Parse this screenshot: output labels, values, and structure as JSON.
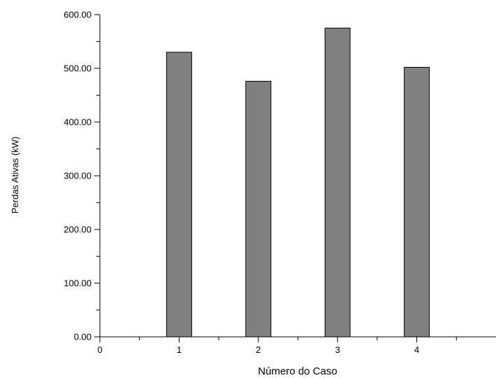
{
  "chart_data": {
    "type": "bar",
    "title": "",
    "xlabel": "Número do Caso",
    "ylabel": "Perdas Ativas (kW)",
    "categories": [
      1,
      2,
      3,
      4
    ],
    "values": [
      530,
      476,
      575,
      502
    ],
    "xlim": [
      0,
      5
    ],
    "ylim": [
      0,
      600
    ],
    "x_tick_labels": [
      "0",
      "1",
      "2",
      "3",
      "4"
    ],
    "y_tick_labels": [
      "0.00",
      "100.00",
      "200.00",
      "300.00",
      "400.00",
      "500.00",
      "600.00"
    ],
    "bar_color": "#808080",
    "grid": false,
    "legend": "none"
  }
}
